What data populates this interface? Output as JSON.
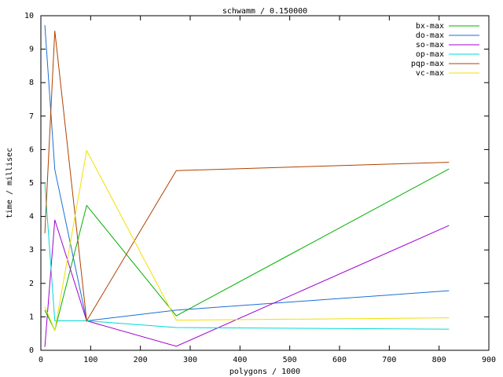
{
  "chart_data": {
    "type": "line",
    "title": "schwamm / 0.150000",
    "x_label": "polygons / 1000",
    "y_label": "time / millisec",
    "x": [
      8,
      28,
      92,
      272,
      820
    ],
    "series": [
      {
        "name": "bx-max",
        "color": "#00b000",
        "values": [
          1.2,
          0.6,
          4.33,
          1.03,
          5.42
        ]
      },
      {
        "name": "do-max",
        "color": "#1a6fd6",
        "values": [
          9.72,
          5.4,
          0.88,
          1.2,
          1.78
        ]
      },
      {
        "name": "so-max",
        "color": "#a000d0",
        "values": [
          0.1,
          3.9,
          0.88,
          0.12,
          3.73
        ]
      },
      {
        "name": "op-max",
        "color": "#00d8d8",
        "values": [
          5.0,
          0.88,
          0.88,
          0.68,
          0.63
        ]
      },
      {
        "name": "pqp-max",
        "color": "#b04000",
        "values": [
          3.5,
          9.55,
          0.88,
          5.37,
          5.62
        ]
      },
      {
        "name": "vc-max",
        "color": "#f0e000",
        "values": [
          1.3,
          0.6,
          5.97,
          0.9,
          0.97
        ]
      }
    ],
    "xlim": [
      0,
      900
    ],
    "xticks": [
      0,
      100,
      200,
      300,
      400,
      500,
      600,
      700,
      800,
      900
    ],
    "ylim": [
      0,
      10
    ],
    "yticks": [
      0,
      1,
      2,
      3,
      4,
      5,
      6,
      7,
      8,
      9,
      10
    ],
    "legend": "top-right"
  }
}
